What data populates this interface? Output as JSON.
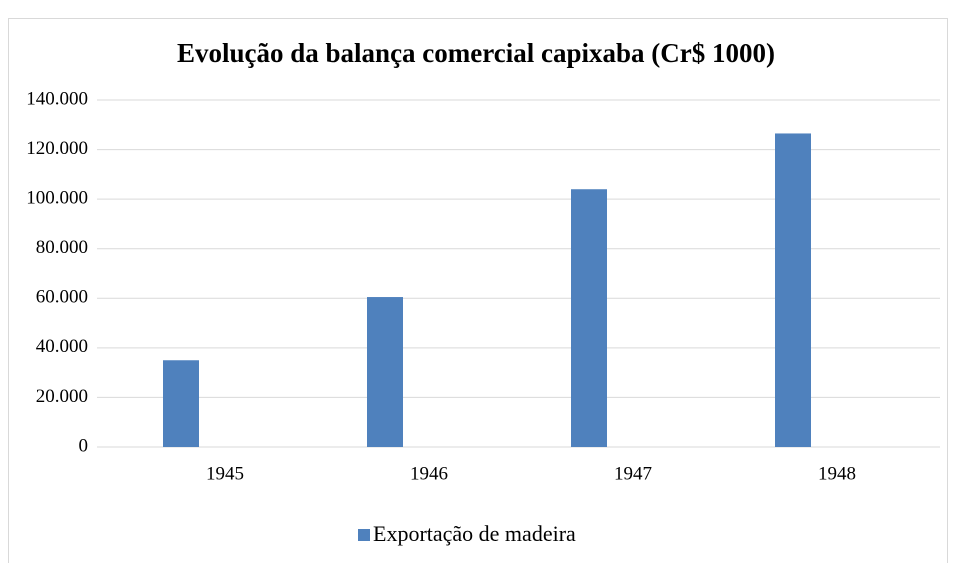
{
  "chart_data": {
    "type": "bar",
    "title": "Evolução da balança comercial capixaba (Cr$ 1000)",
    "categories": [
      "1945",
      "1946",
      "1947",
      "1948"
    ],
    "series": [
      {
        "name": "Exportação de madeira",
        "color": "#4f81bd",
        "values": [
          35000,
          60500,
          104000,
          126500
        ]
      }
    ],
    "ylim": [
      0,
      140000
    ],
    "yticks": [
      0,
      {
        "value": 20000,
        "label": "20.000"
      },
      {
        "value": 40000,
        "label": "40.000"
      },
      {
        "value": 60000,
        "label": "60.000"
      },
      {
        "value": 80000,
        "label": "80.000"
      },
      {
        "value": 100000,
        "label": "100.000"
      },
      {
        "value": 120000,
        "label": "120.000"
      },
      {
        "value": 140000,
        "label": "140.000"
      }
    ],
    "grid": true,
    "legend": "bottom"
  }
}
